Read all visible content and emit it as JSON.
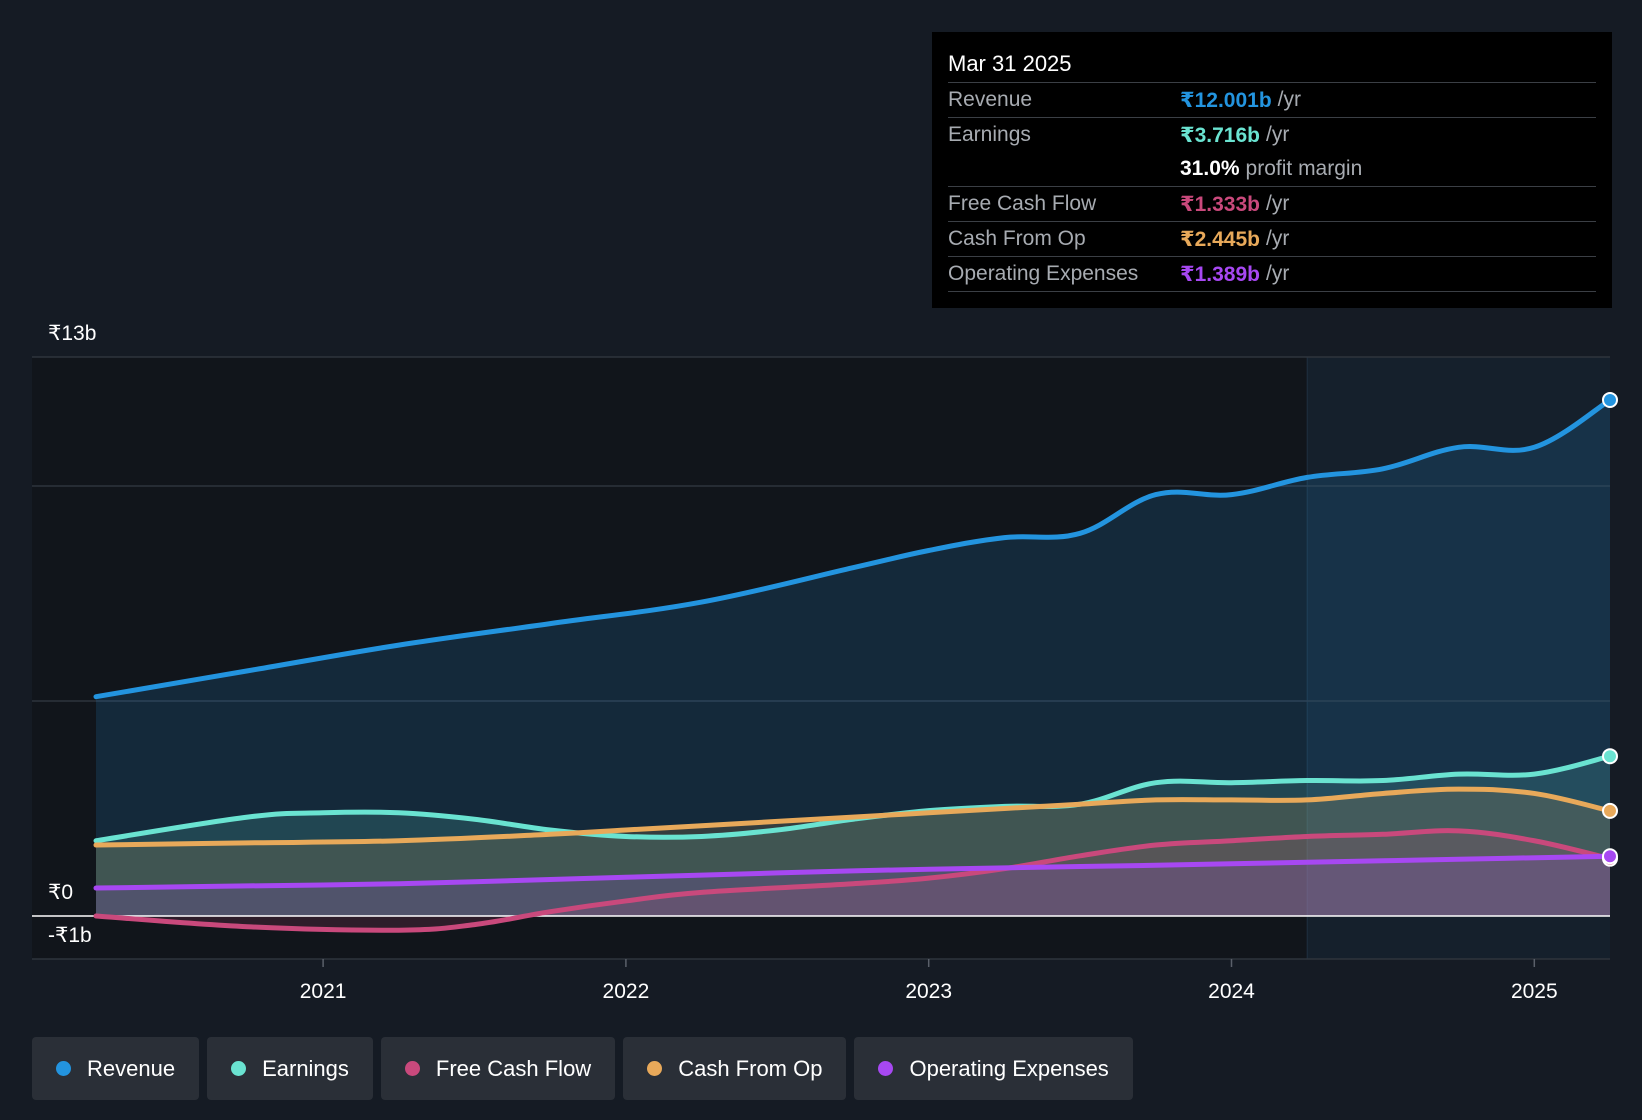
{
  "tooltip": {
    "date": "Mar 31 2025",
    "rows": [
      {
        "name": "Revenue",
        "value": "₹12.001b",
        "unit": "/yr",
        "color": "#2394df"
      },
      {
        "name": "Earnings",
        "value": "₹3.716b",
        "unit": "/yr",
        "color": "#6ae3d1"
      },
      {
        "name": "",
        "value": "31.0%",
        "unit": "profit margin",
        "color": "#ffffff"
      },
      {
        "name": "Free Cash Flow",
        "value": "₹1.333b",
        "unit": "/yr",
        "color": "#c9497c"
      },
      {
        "name": "Cash From Op",
        "value": "₹2.445b",
        "unit": "/yr",
        "color": "#e8a95a"
      },
      {
        "name": "Operating Expenses",
        "value": "₹1.389b",
        "unit": "/yr",
        "color": "#a748f2"
      }
    ]
  },
  "legend": [
    {
      "label": "Revenue",
      "color": "#2394df"
    },
    {
      "label": "Earnings",
      "color": "#6ae3d1"
    },
    {
      "label": "Free Cash Flow",
      "color": "#c9497c"
    },
    {
      "label": "Cash From Op",
      "color": "#e8a95a"
    },
    {
      "label": "Operating Expenses",
      "color": "#a748f2"
    }
  ],
  "chart_data": {
    "type": "area",
    "y_unit": "₹ billions",
    "ylim": [
      -1,
      13
    ],
    "y_tick_labels": [
      {
        "value": 13,
        "label": "₹13b"
      },
      {
        "value": 0,
        "label": "₹0"
      },
      {
        "value": -1,
        "label": "-₹1b"
      }
    ],
    "xlim": [
      2020.25,
      2025.25
    ],
    "x_tick_labels": [
      {
        "value": 2021,
        "label": "2021"
      },
      {
        "value": 2022,
        "label": "2022"
      },
      {
        "value": 2023,
        "label": "2023"
      },
      {
        "value": 2024,
        "label": "2024"
      },
      {
        "value": 2025,
        "label": "2025"
      }
    ],
    "gridlines_y": [
      13,
      10,
      5,
      0,
      -1
    ],
    "highlight_start_x": 2024.25,
    "series": [
      {
        "name": "Revenue",
        "color": "#2394df",
        "points": [
          [
            2020.25,
            5.1
          ],
          [
            2020.75,
            5.7
          ],
          [
            2021.25,
            6.3
          ],
          [
            2021.75,
            6.8
          ],
          [
            2022.25,
            7.3
          ],
          [
            2022.75,
            8.1
          ],
          [
            2023.0,
            8.5
          ],
          [
            2023.25,
            8.8
          ],
          [
            2023.5,
            8.9
          ],
          [
            2023.75,
            9.8
          ],
          [
            2024.0,
            9.8
          ],
          [
            2024.25,
            10.2
          ],
          [
            2024.5,
            10.4
          ],
          [
            2024.75,
            10.9
          ],
          [
            2025.0,
            10.9
          ],
          [
            2025.25,
            12.001
          ]
        ]
      },
      {
        "name": "Earnings",
        "color": "#6ae3d1",
        "points": [
          [
            2020.25,
            1.75
          ],
          [
            2020.75,
            2.3
          ],
          [
            2021.0,
            2.4
          ],
          [
            2021.25,
            2.4
          ],
          [
            2021.5,
            2.25
          ],
          [
            2021.75,
            2.0
          ],
          [
            2022.0,
            1.85
          ],
          [
            2022.25,
            1.85
          ],
          [
            2022.5,
            2.0
          ],
          [
            2022.75,
            2.25
          ],
          [
            2023.0,
            2.45
          ],
          [
            2023.25,
            2.55
          ],
          [
            2023.5,
            2.6
          ],
          [
            2023.75,
            3.1
          ],
          [
            2024.0,
            3.1
          ],
          [
            2024.25,
            3.15
          ],
          [
            2024.5,
            3.15
          ],
          [
            2024.75,
            3.3
          ],
          [
            2025.0,
            3.3
          ],
          [
            2025.25,
            3.716
          ]
        ]
      },
      {
        "name": "Free Cash Flow",
        "color": "#c9497c",
        "points": [
          [
            2020.25,
            0.0
          ],
          [
            2020.75,
            -0.25
          ],
          [
            2021.25,
            -0.33
          ],
          [
            2021.5,
            -0.2
          ],
          [
            2021.75,
            0.1
          ],
          [
            2022.0,
            0.35
          ],
          [
            2022.25,
            0.55
          ],
          [
            2022.75,
            0.75
          ],
          [
            2023.0,
            0.88
          ],
          [
            2023.25,
            1.1
          ],
          [
            2023.5,
            1.4
          ],
          [
            2023.75,
            1.65
          ],
          [
            2024.0,
            1.75
          ],
          [
            2024.25,
            1.85
          ],
          [
            2024.5,
            1.9
          ],
          [
            2024.75,
            1.98
          ],
          [
            2025.0,
            1.75
          ],
          [
            2025.25,
            1.333
          ]
        ]
      },
      {
        "name": "Cash From Op",
        "color": "#e8a95a",
        "points": [
          [
            2020.25,
            1.65
          ],
          [
            2020.75,
            1.7
          ],
          [
            2021.25,
            1.75
          ],
          [
            2021.75,
            1.9
          ],
          [
            2022.0,
            2.0
          ],
          [
            2022.25,
            2.1
          ],
          [
            2022.75,
            2.3
          ],
          [
            2023.0,
            2.4
          ],
          [
            2023.25,
            2.5
          ],
          [
            2023.5,
            2.6
          ],
          [
            2023.75,
            2.7
          ],
          [
            2024.0,
            2.7
          ],
          [
            2024.25,
            2.7
          ],
          [
            2024.5,
            2.85
          ],
          [
            2024.75,
            2.95
          ],
          [
            2025.0,
            2.85
          ],
          [
            2025.25,
            2.445
          ]
        ]
      },
      {
        "name": "Operating Expenses",
        "color": "#a748f2",
        "points": [
          [
            2020.25,
            0.65
          ],
          [
            2020.75,
            0.7
          ],
          [
            2021.25,
            0.75
          ],
          [
            2021.75,
            0.85
          ],
          [
            2022.25,
            0.95
          ],
          [
            2022.75,
            1.05
          ],
          [
            2023.25,
            1.12
          ],
          [
            2023.75,
            1.18
          ],
          [
            2024.25,
            1.25
          ],
          [
            2024.75,
            1.32
          ],
          [
            2025.25,
            1.389
          ]
        ]
      }
    ]
  }
}
